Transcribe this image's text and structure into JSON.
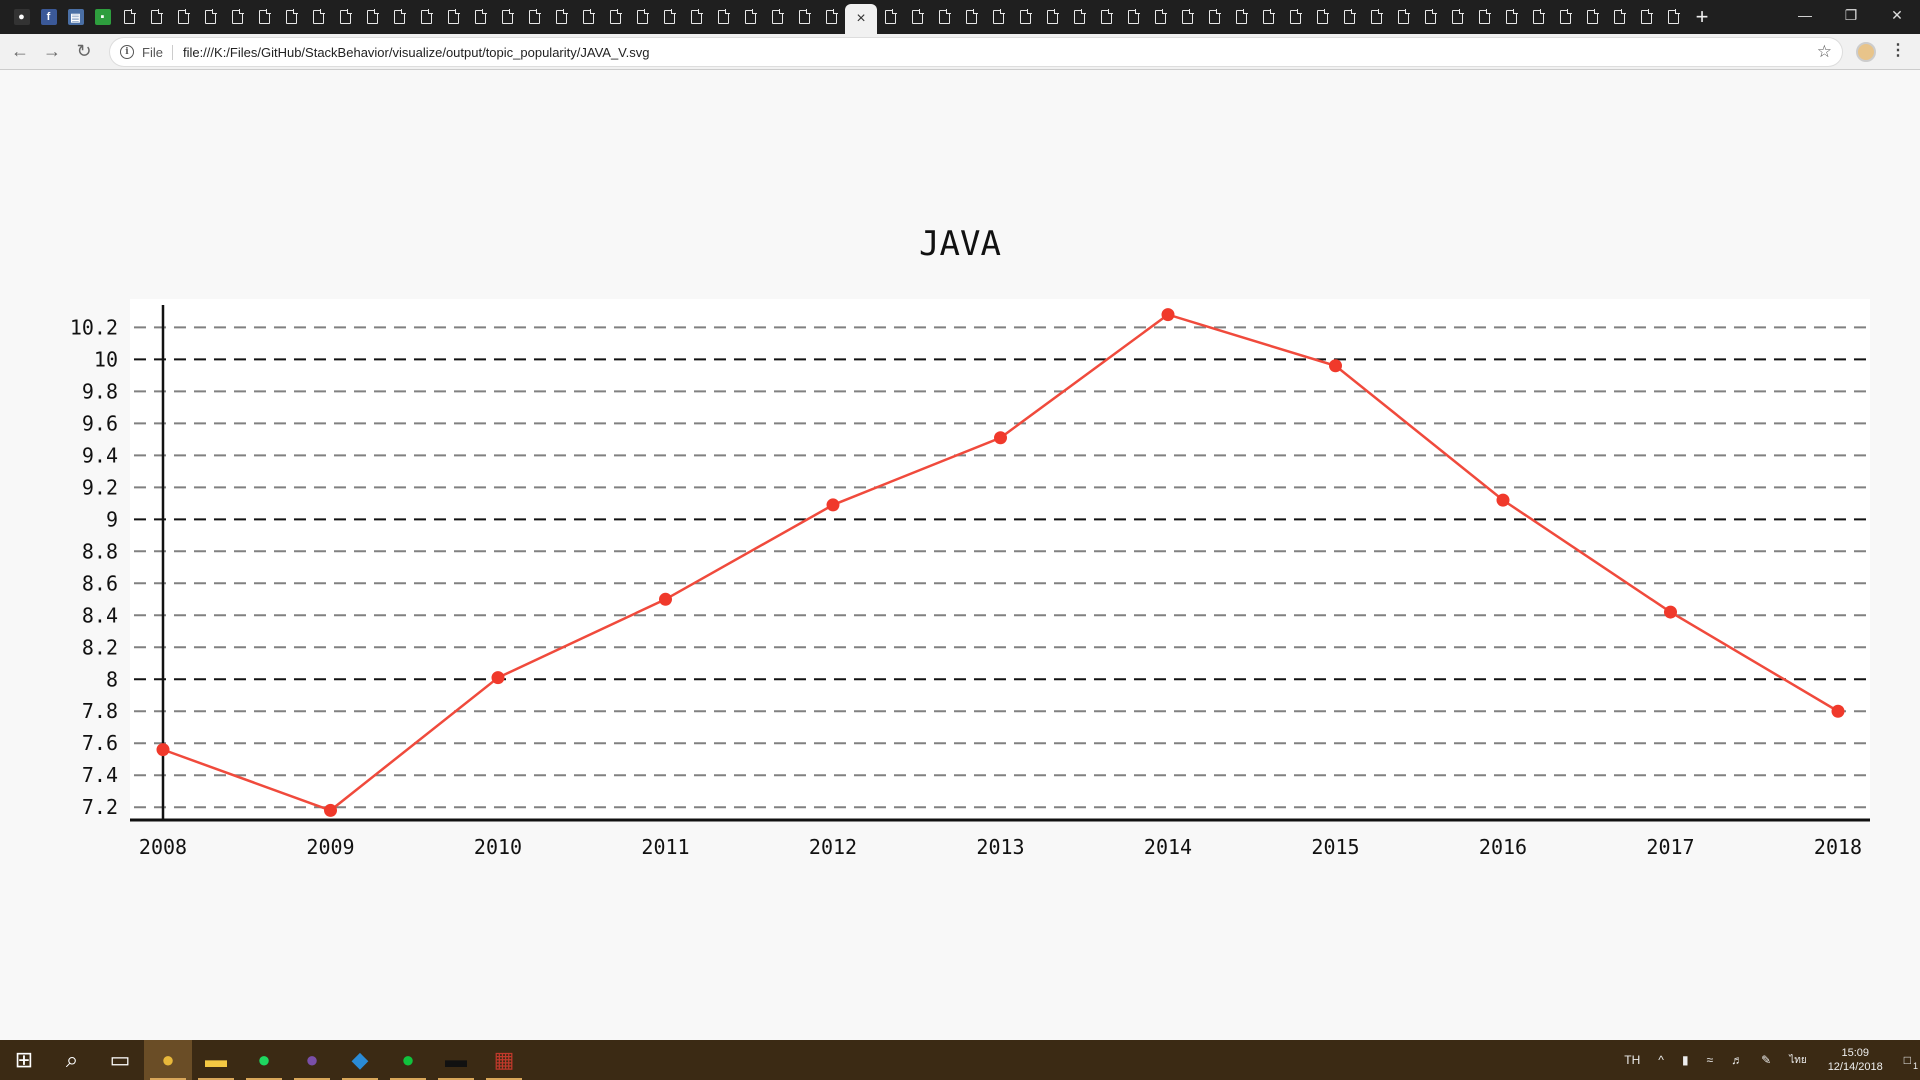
{
  "browser": {
    "tabs": {
      "favicons": [
        "github-icon",
        "facebook-icon",
        "sheet-icon",
        "green-badge-icon"
      ],
      "doc_tab_count_left": 27,
      "doc_tab_count_right": 30,
      "active_close": "×",
      "new_tab": "+"
    },
    "window_controls": {
      "minimize": "—",
      "restore": "❐",
      "close": "✕"
    },
    "address": {
      "scheme": "File",
      "url": "file:///K:/Files/GitHub/StackBehavior/visualize/output/topic_popularity/JAVA_V.svg"
    }
  },
  "chart_data": {
    "type": "line",
    "title": "JAVA",
    "x": [
      2008,
      2009,
      2010,
      2011,
      2012,
      2013,
      2014,
      2015,
      2016,
      2017,
      2018
    ],
    "series": [
      {
        "name": "",
        "values": [
          7.56,
          7.18,
          8.01,
          8.5,
          9.09,
          9.51,
          10.28,
          9.96,
          9.12,
          8.42,
          7.8
        ]
      }
    ],
    "y_ticks": [
      7.2,
      7.4,
      7.6,
      7.8,
      8,
      8.2,
      8.4,
      8.6,
      8.8,
      9,
      9.2,
      9.4,
      9.6,
      9.8,
      10,
      10.2
    ],
    "y_tick_labels": [
      "7.2",
      "7.4",
      "7.6",
      "7.8",
      "8",
      "8.2",
      "8.4",
      "8.6",
      "8.8",
      "9",
      "9.2",
      "9.4",
      "9.6",
      "9.8",
      "10",
      "10.2"
    ],
    "major_ticks": [
      8,
      9,
      10
    ],
    "ylim": [
      7.12,
      10.34
    ],
    "grid": true,
    "colors": {
      "line": "#f04a3c",
      "point": "#f0392b",
      "grid": "#808080",
      "grid_major": "#111111",
      "axis": "#111111"
    }
  },
  "taskbar": {
    "apps": [
      "windows-start-icon",
      "search-icon",
      "task-view-icon",
      "chrome-icon",
      "file-explorer-icon",
      "spotify-icon",
      "github-desktop-icon",
      "vscode-icon",
      "line-icon",
      "terminal-icon",
      "winrar-icon"
    ],
    "tray": {
      "language": "TH",
      "chevron": "^",
      "input_mode": "ไทย",
      "time": "15:09",
      "date": "12/14/2018",
      "notification_count": "1"
    }
  }
}
